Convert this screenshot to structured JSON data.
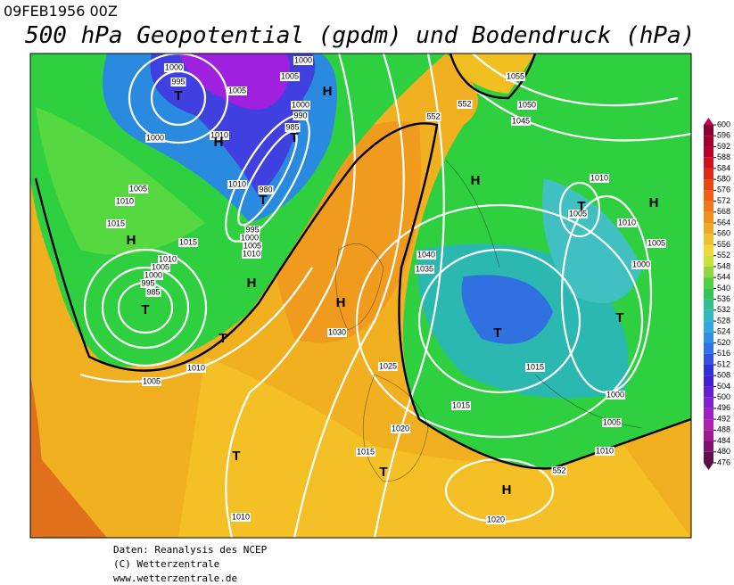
{
  "header": {
    "date": "09FEB1956 00Z",
    "title": "500 hPa Geopotential (gpdm) und Bodendruck (hPa)"
  },
  "colorbar": {
    "ticks": [
      600,
      596,
      592,
      588,
      584,
      580,
      576,
      572,
      568,
      564,
      560,
      556,
      552,
      548,
      544,
      540,
      536,
      532,
      528,
      524,
      520,
      516,
      512,
      508,
      504,
      500,
      496,
      492,
      488,
      484,
      480,
      476
    ]
  },
  "map": {
    "pressure_labels": [
      1000,
      995,
      1005,
      1000,
      1010,
      1005,
      1000,
      1000,
      990,
      985,
      1005,
      1010,
      1010,
      980,
      995,
      1000,
      1005,
      1010,
      1015,
      1015,
      1010,
      1005,
      1000,
      995,
      985,
      1010,
      1005,
      1055,
      1050,
      1045,
      1010,
      1005,
      1010,
      1005,
      1000,
      1040,
      1035,
      1030,
      1025,
      1020,
      1015,
      1015,
      1015,
      1000,
      1005,
      1010,
      1020,
      1010,
      552,
      552,
      552
    ],
    "centers": [
      "T",
      "H",
      "H",
      "T",
      "T",
      "H",
      "H",
      "T",
      "T",
      "H",
      "T",
      "T",
      "H",
      "H",
      "T",
      "H",
      "T",
      "T"
    ]
  },
  "footer": [
    "Daten: Reanalysis des NCEP",
    "(C) Wetterzentrale",
    "www.wetterzentrale.de"
  ]
}
